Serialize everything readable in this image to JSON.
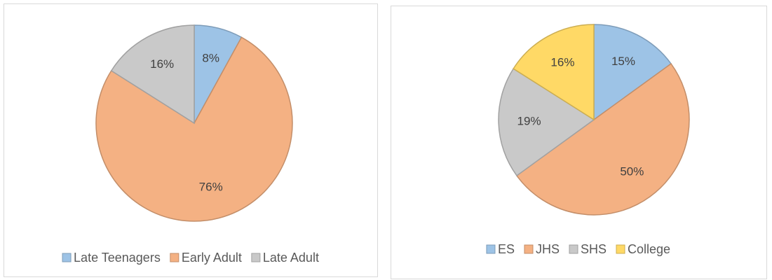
{
  "chart_data": [
    {
      "type": "pie",
      "categories": [
        "Late Teenagers",
        "Early Adult",
        "Late Adult"
      ],
      "values": [
        8,
        76,
        16
      ],
      "value_labels": [
        "8%",
        "76%",
        "16%"
      ],
      "colors": [
        "#9dc3e6",
        "#f4b183",
        "#c9c9c9"
      ],
      "legend": "bottom"
    },
    {
      "type": "pie",
      "categories": [
        "ES",
        "JHS",
        "SHS",
        "College"
      ],
      "values": [
        15,
        50,
        19,
        16
      ],
      "value_labels": [
        "15%",
        "50%",
        "19%",
        "16%"
      ],
      "colors": [
        "#9dc3e6",
        "#f4b183",
        "#c9c9c9",
        "#ffd966"
      ],
      "legend": "bottom"
    }
  ]
}
